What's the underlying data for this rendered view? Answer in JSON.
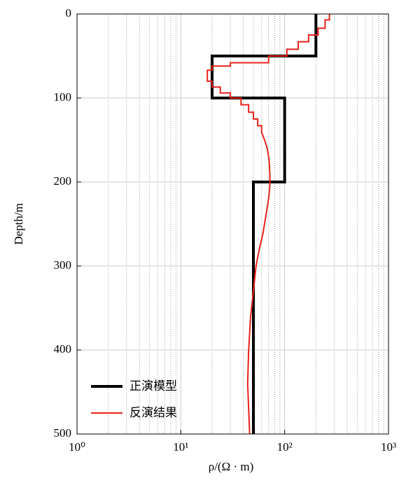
{
  "chart_data": {
    "type": "line",
    "xlabel": "ρ/(Ω · m)",
    "ylabel": "Depth/m",
    "xlog": true,
    "yinverted": true,
    "grid": true,
    "minor_grid": true,
    "legend": "lower left",
    "xlim": [
      1,
      1000
    ],
    "ylim": [
      0,
      500
    ],
    "xticks": [
      {
        "value": 1,
        "label": "10⁰"
      },
      {
        "value": 10,
        "label": "10¹"
      },
      {
        "value": 100,
        "label": "10²"
      },
      {
        "value": 1000,
        "label": "10³"
      }
    ],
    "yticks": [
      0,
      100,
      200,
      300,
      400,
      500
    ],
    "series": [
      {
        "name": "正演模型",
        "color": "#000000",
        "width": 4,
        "x": [
          200,
          200,
          20,
          20,
          100,
          100,
          50,
          50
        ],
        "values": [
          0,
          50,
          50,
          100,
          100,
          200,
          200,
          500
        ]
      },
      {
        "name": "反演结果",
        "color": "#e8221b",
        "width": 2,
        "x": [
          270,
          270,
          245,
          245,
          210,
          210,
          170,
          170,
          135,
          135,
          105,
          105,
          70,
          70,
          30,
          30,
          20,
          20,
          18,
          18,
          20,
          20,
          24,
          24,
          30,
          30,
          38,
          38,
          45,
          45,
          50,
          50,
          55,
          55,
          60,
          60,
          64,
          68,
          71,
          72,
          72,
          70,
          66,
          62,
          57,
          53,
          50,
          47,
          45,
          44,
          45,
          46
        ],
        "values": [
          0,
          7,
          7,
          17,
          17,
          25,
          25,
          33,
          33,
          42,
          42,
          50,
          50,
          58,
          58,
          62,
          62,
          67,
          67,
          80,
          80,
          87,
          87,
          94,
          94,
          100,
          100,
          108,
          108,
          117,
          117,
          125,
          125,
          133,
          133,
          141,
          150,
          160,
          175,
          190,
          205,
          220,
          240,
          260,
          280,
          300,
          330,
          360,
          400,
          440,
          470,
          500
        ]
      }
    ]
  }
}
